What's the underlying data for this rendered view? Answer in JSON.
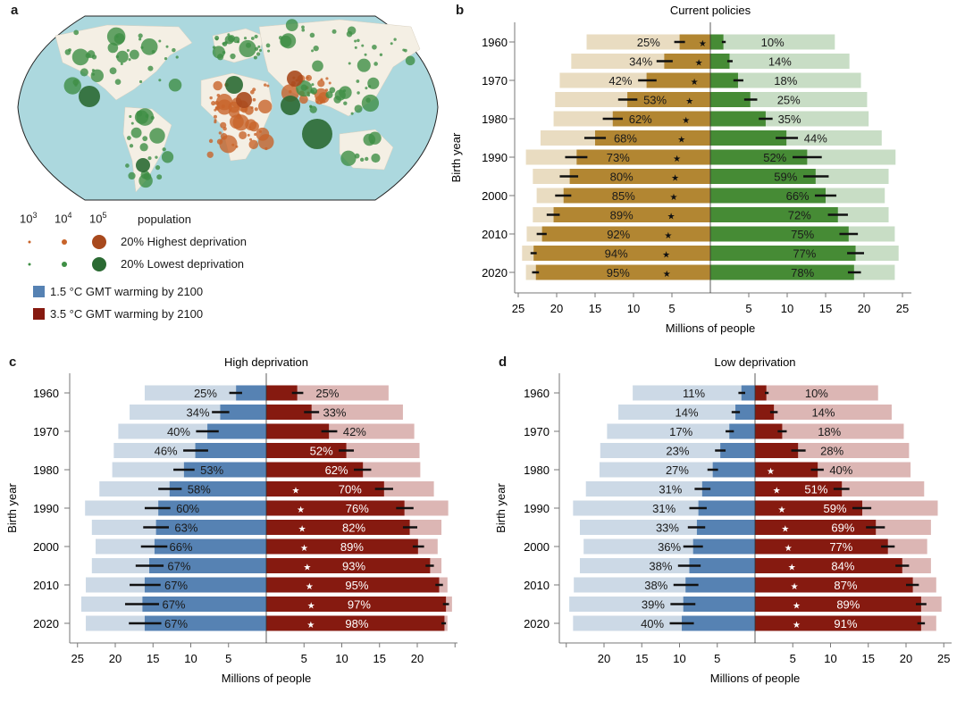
{
  "panel_labels": {
    "a": "a",
    "b": "b",
    "c": "c",
    "d": "d"
  },
  "legend": {
    "sizes": [
      {
        "base": "10",
        "exp": "3"
      },
      {
        "base": "10",
        "exp": "4"
      },
      {
        "base": "10",
        "exp": "5"
      }
    ],
    "size_title": "population",
    "high_label": "20% Highest deprivation",
    "low_label": "20% Lowest deprivation",
    "high_color": "#c8642a",
    "low_color": "#3f8f45",
    "warm15_label": "1.5 °C GMT warming by 2100",
    "warm35_label": "3.5 °C GMT warming by 2100",
    "warm15_color": "#5682b3",
    "warm35_color": "#861a10"
  },
  "map": {
    "ocean_color": "#acd8de",
    "land_color": "#f4efe4"
  },
  "chart_data": [
    {
      "panel": "b",
      "type": "bar",
      "orientation": "diverging-horizontal",
      "title": "Current policies",
      "ylabel": "Birth year",
      "xlabel": "Millions of people",
      "categories": [
        1960,
        1965,
        1970,
        1975,
        1980,
        1985,
        1990,
        1995,
        2000,
        2005,
        2010,
        2015,
        2020
      ],
      "year_tick_labels": [
        "1960",
        "1970",
        "1980",
        "1990",
        "2000",
        "2010",
        "2020"
      ],
      "x_ticks_left": [
        "25",
        "20",
        "15",
        "10",
        "5"
      ],
      "x_ticks_right": [
        "5",
        "10",
        "15",
        "20",
        "25"
      ],
      "series": [
        {
          "side": "left",
          "color": "#b28632",
          "light_color": "#e9dcc1",
          "label_color_on_dark": "#1a1a1a",
          "star_color": "#111111",
          "total": [
            16.1,
            18.1,
            19.6,
            20.2,
            20.4,
            22.1,
            24.0,
            23.1,
            22.6,
            23.1,
            23.9,
            24.5,
            24.0
          ],
          "value": [
            4.0,
            6.0,
            8.3,
            10.8,
            12.7,
            15.0,
            17.4,
            18.3,
            19.1,
            20.4,
            21.9,
            23.0,
            22.7
          ],
          "ci": [
            [
              3.3,
              4.7
            ],
            [
              4.9,
              7.0
            ],
            [
              7.0,
              9.4
            ],
            [
              9.5,
              12.0
            ],
            [
              11.4,
              14.0
            ],
            [
              13.6,
              16.4
            ],
            [
              16.0,
              18.9
            ],
            [
              17.2,
              19.6
            ],
            [
              18.1,
              20.2
            ],
            [
              19.6,
              21.3
            ],
            [
              21.3,
              22.6
            ],
            [
              22.6,
              23.4
            ],
            [
              22.3,
              23.2
            ]
          ],
          "labels": [
            "25%",
            "34%",
            "42%",
            "53%",
            "62%",
            "68%",
            "73%",
            "80%",
            "85%",
            "89%",
            "92%",
            "94%",
            "95%"
          ],
          "star": [
            true,
            true,
            true,
            true,
            true,
            true,
            true,
            true,
            true,
            true,
            true,
            true,
            true
          ],
          "star_glyph": "★"
        },
        {
          "side": "right",
          "color": "#468b35",
          "light_color": "#c8ddc5",
          "label_color_on_dark": "#1a1a1a",
          "star_color": "#111111",
          "total": [
            16.2,
            18.1,
            19.6,
            20.4,
            20.6,
            22.3,
            24.1,
            23.2,
            22.7,
            23.2,
            24.0,
            24.5,
            24.0
          ],
          "value": [
            1.7,
            2.5,
            3.6,
            5.2,
            7.2,
            9.9,
            12.6,
            13.7,
            15.0,
            16.6,
            18.0,
            18.9,
            18.7
          ],
          "ci": [
            [
              1.5,
              2.0
            ],
            [
              2.2,
              2.9
            ],
            [
              3.0,
              4.3
            ],
            [
              4.4,
              6.1
            ],
            [
              6.3,
              8.1
            ],
            [
              8.5,
              11.4
            ],
            [
              10.7,
              14.5
            ],
            [
              12.1,
              15.4
            ],
            [
              13.6,
              16.4
            ],
            [
              15.3,
              17.9
            ],
            [
              16.8,
              19.2
            ],
            [
              17.8,
              20.0
            ],
            [
              17.9,
              19.6
            ]
          ],
          "labels": [
            "10%",
            "14%",
            "18%",
            "25%",
            "35%",
            "44%",
            "52%",
            "59%",
            "66%",
            "72%",
            "75%",
            "77%",
            "78%"
          ],
          "star": [
            false,
            false,
            false,
            false,
            false,
            false,
            false,
            false,
            false,
            false,
            false,
            false,
            false
          ],
          "star_glyph": "★"
        }
      ]
    },
    {
      "panel": "c",
      "type": "bar",
      "orientation": "diverging-horizontal",
      "title": "High deprivation",
      "ylabel": "Birth year",
      "xlabel": "Millions of people",
      "categories": [
        1960,
        1965,
        1970,
        1975,
        1980,
        1985,
        1990,
        1995,
        2000,
        2005,
        2010,
        2015,
        2020
      ],
      "year_tick_labels": [
        "1960",
        "1970",
        "1980",
        "1990",
        "2000",
        "2010",
        "2020"
      ],
      "x_ticks_left": [
        "25",
        "20",
        "15",
        "10",
        "5"
      ],
      "x_ticks_right": [
        "5",
        "10",
        "15",
        "20",
        ""
      ],
      "series": [
        {
          "side": "left",
          "color": "#5682b3",
          "light_color": "#ccd9e6",
          "label_color_on_dark": "#1a1a1a",
          "star_color": "#ffffff",
          "total": [
            16.1,
            18.1,
            19.6,
            20.2,
            20.4,
            22.1,
            24.0,
            23.1,
            22.6,
            23.1,
            23.9,
            24.5,
            23.9
          ],
          "value": [
            4.0,
            6.1,
            7.8,
            9.4,
            10.9,
            12.8,
            14.3,
            14.6,
            14.8,
            15.5,
            16.1,
            16.4,
            16.1
          ],
          "ci": [
            [
              3.2,
              4.9
            ],
            [
              4.9,
              7.2
            ],
            [
              6.3,
              9.3
            ],
            [
              7.7,
              11.0
            ],
            [
              9.5,
              12.3
            ],
            [
              11.2,
              14.3
            ],
            [
              12.7,
              16.1
            ],
            [
              12.9,
              16.3
            ],
            [
              13.1,
              16.6
            ],
            [
              13.6,
              17.3
            ],
            [
              14.0,
              18.1
            ],
            [
              14.2,
              18.7
            ],
            [
              13.9,
              18.2
            ]
          ],
          "labels": [
            "25%",
            "34%",
            "40%",
            "46%",
            "53%",
            "58%",
            "60%",
            "63%",
            "66%",
            "67%",
            "67%",
            "67%",
            "67%"
          ],
          "star": [
            false,
            false,
            false,
            false,
            false,
            false,
            false,
            false,
            false,
            false,
            false,
            false,
            false
          ],
          "star_glyph": "★"
        },
        {
          "side": "right",
          "color": "#861a10",
          "light_color": "#dcb6b4",
          "label_color_on_dark": "#ffffff",
          "star_color": "#ffffff",
          "total": [
            16.2,
            18.1,
            19.6,
            20.3,
            20.4,
            22.2,
            24.1,
            23.2,
            22.7,
            23.2,
            24.0,
            24.6,
            24.0
          ],
          "value": [
            4.1,
            6.0,
            8.3,
            10.6,
            12.8,
            15.6,
            18.3,
            19.0,
            20.1,
            21.7,
            22.9,
            23.8,
            23.6
          ],
          "ci": [
            [
              3.4,
              4.9
            ],
            [
              5.0,
              7.0
            ],
            [
              7.3,
              9.4
            ],
            [
              9.6,
              11.6
            ],
            [
              11.6,
              13.9
            ],
            [
              14.4,
              16.8
            ],
            [
              17.2,
              19.5
            ],
            [
              18.1,
              20.0
            ],
            [
              19.4,
              20.9
            ],
            [
              21.1,
              22.2
            ],
            [
              22.4,
              23.4
            ],
            [
              23.4,
              24.2
            ],
            [
              23.2,
              23.8
            ]
          ],
          "labels": [
            "25%",
            "33%",
            "42%",
            "52%",
            "62%",
            "70%",
            "76%",
            "82%",
            "89%",
            "93%",
            "95%",
            "97%",
            "98%"
          ],
          "star": [
            false,
            false,
            false,
            false,
            false,
            true,
            true,
            true,
            true,
            true,
            true,
            true,
            true
          ],
          "star_glyph": "★"
        }
      ]
    },
    {
      "panel": "d",
      "type": "bar",
      "orientation": "diverging-horizontal",
      "title": "Low deprivation",
      "ylabel": "Birth year",
      "xlabel": "Millions of people",
      "categories": [
        1960,
        1965,
        1970,
        1975,
        1980,
        1985,
        1990,
        1995,
        2000,
        2005,
        2010,
        2015,
        2020
      ],
      "year_tick_labels": [
        "1960",
        "1970",
        "1980",
        "1990",
        "2000",
        "2010",
        "2020"
      ],
      "x_ticks_left": [
        "",
        "20",
        "15",
        "10",
        "5"
      ],
      "x_ticks_right": [
        "5",
        "10",
        "15",
        "20",
        "25"
      ],
      "series": [
        {
          "side": "left",
          "color": "#5682b3",
          "light_color": "#ccd9e6",
          "label_color_on_dark": "#1a1a1a",
          "star_color": "#ffffff",
          "total": [
            16.2,
            18.1,
            19.6,
            20.5,
            20.6,
            22.4,
            24.1,
            23.2,
            22.7,
            23.2,
            24.0,
            24.6,
            24.1
          ],
          "value": [
            1.8,
            2.6,
            3.4,
            4.6,
            5.6,
            7.0,
            7.5,
            7.7,
            8.2,
            8.7,
            9.2,
            9.5,
            9.7
          ],
          "ci": [
            [
              1.3,
              2.2
            ],
            [
              2.0,
              3.1
            ],
            [
              2.8,
              3.9
            ],
            [
              3.9,
              5.3
            ],
            [
              4.9,
              6.3
            ],
            [
              5.9,
              8.0
            ],
            [
              6.4,
              8.7
            ],
            [
              6.6,
              8.9
            ],
            [
              6.9,
              9.5
            ],
            [
              7.2,
              10.2
            ],
            [
              7.5,
              10.8
            ],
            [
              7.9,
              11.2
            ],
            [
              8.1,
              11.3
            ]
          ],
          "labels": [
            "11%",
            "14%",
            "17%",
            "23%",
            "27%",
            "31%",
            "31%",
            "33%",
            "36%",
            "38%",
            "38%",
            "39%",
            "40%"
          ],
          "star": [
            false,
            false,
            false,
            false,
            false,
            false,
            false,
            false,
            false,
            false,
            false,
            false,
            false
          ],
          "star_glyph": "★"
        },
        {
          "side": "right",
          "color": "#861a10",
          "light_color": "#dcb6b4",
          "label_color_on_dark": "#ffffff",
          "star_color": "#ffffff",
          "total": [
            16.3,
            18.1,
            19.7,
            20.4,
            20.6,
            22.4,
            24.2,
            23.3,
            22.8,
            23.3,
            24.0,
            24.7,
            24.0
          ],
          "value": [
            1.5,
            2.5,
            3.6,
            5.7,
            8.3,
            11.5,
            14.2,
            16.0,
            17.6,
            19.5,
            20.9,
            22.0,
            22.0
          ],
          "ci": [
            [
              1.3,
              1.8
            ],
            [
              2.0,
              3.0
            ],
            [
              3.0,
              4.2
            ],
            [
              4.8,
              6.7
            ],
            [
              7.4,
              9.1
            ],
            [
              10.4,
              12.5
            ],
            [
              12.9,
              15.4
            ],
            [
              14.7,
              17.2
            ],
            [
              16.7,
              18.5
            ],
            [
              18.6,
              20.4
            ],
            [
              20.0,
              21.7
            ],
            [
              21.3,
              22.7
            ],
            [
              21.5,
              22.5
            ]
          ],
          "labels": [
            "10%",
            "14%",
            "18%",
            "28%",
            "40%",
            "51%",
            "59%",
            "69%",
            "77%",
            "84%",
            "87%",
            "89%",
            "91%"
          ],
          "star": [
            false,
            false,
            false,
            false,
            true,
            true,
            true,
            true,
            true,
            true,
            true,
            true,
            true
          ],
          "star_glyph": "★"
        }
      ]
    }
  ]
}
